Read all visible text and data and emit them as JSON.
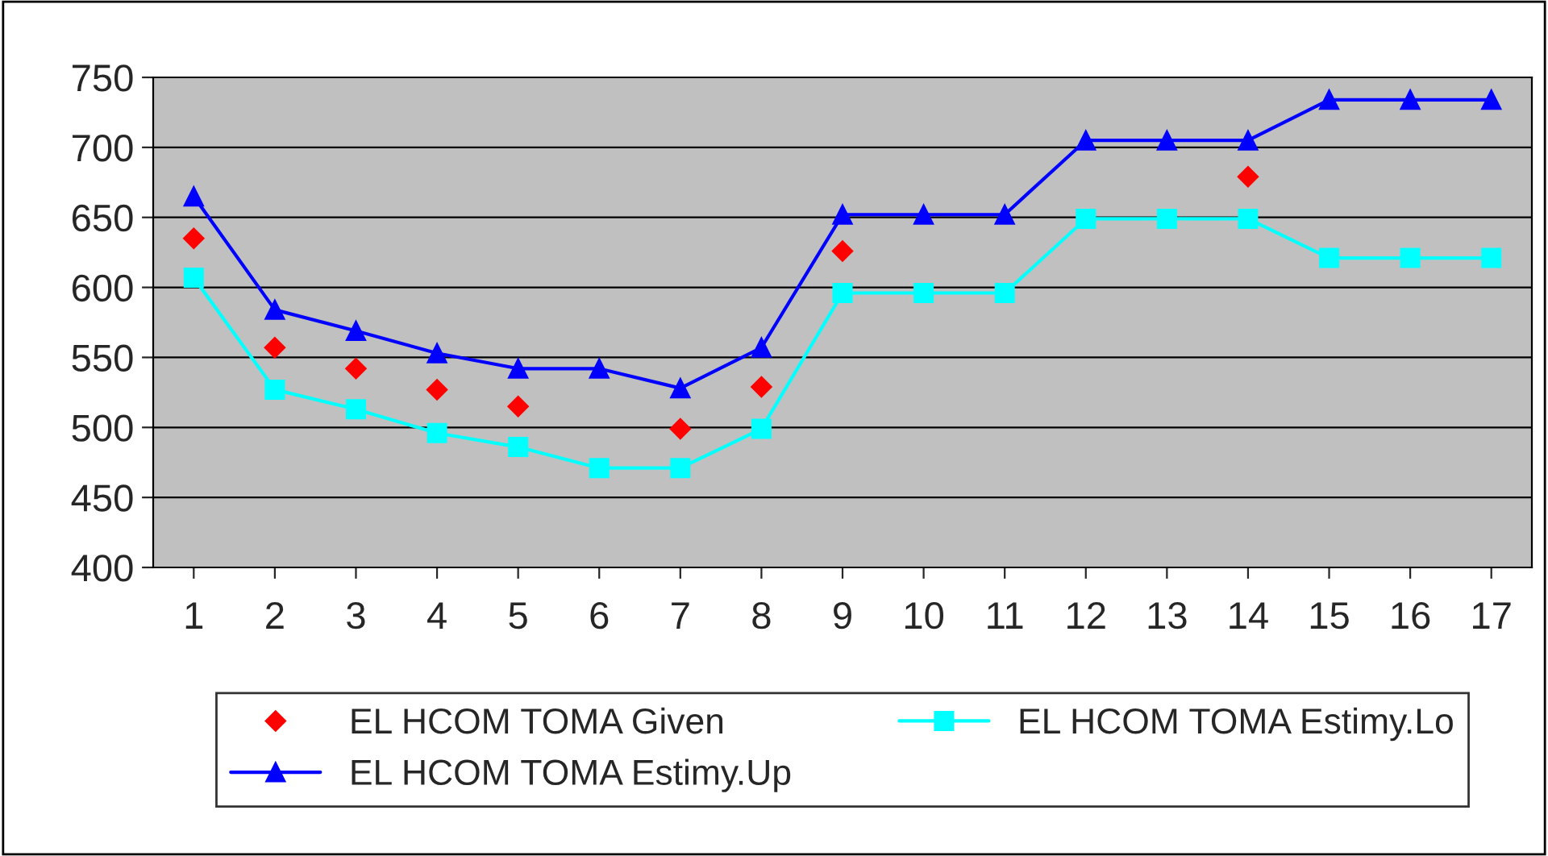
{
  "chart_data": {
    "type": "line",
    "categories": [
      "1",
      "2",
      "3",
      "4",
      "5",
      "6",
      "7",
      "8",
      "9",
      "10",
      "11",
      "12",
      "13",
      "14",
      "15",
      "16",
      "17"
    ],
    "series": [
      {
        "name": "EL HCOM TOMA Given",
        "type": "scatter",
        "marker": "diamond",
        "color": "#ff0000",
        "values": [
          635,
          557,
          542,
          527,
          515,
          null,
          499,
          529,
          626,
          null,
          null,
          null,
          null,
          679,
          null,
          null,
          null
        ]
      },
      {
        "name": "EL HCOM TOMA Estimy.Lo",
        "marker": "square",
        "color": "#00ffff",
        "values": [
          607,
          527,
          513,
          496,
          486,
          471,
          471,
          499,
          596,
          596,
          596,
          649,
          649,
          649,
          621,
          621,
          621
        ]
      },
      {
        "name": "EL HCOM TOMA Estimy.Up",
        "marker": "triangle",
        "color": "#0000ff",
        "values": [
          665,
          584,
          569,
          553,
          542,
          542,
          528,
          557,
          652,
          652,
          652,
          705,
          705,
          705,
          734,
          734,
          734
        ]
      }
    ],
    "ylim": [
      400,
      750
    ],
    "yticks": [
      400,
      450,
      500,
      550,
      600,
      650,
      700,
      750
    ],
    "grid": "y",
    "legend": "bottom"
  }
}
